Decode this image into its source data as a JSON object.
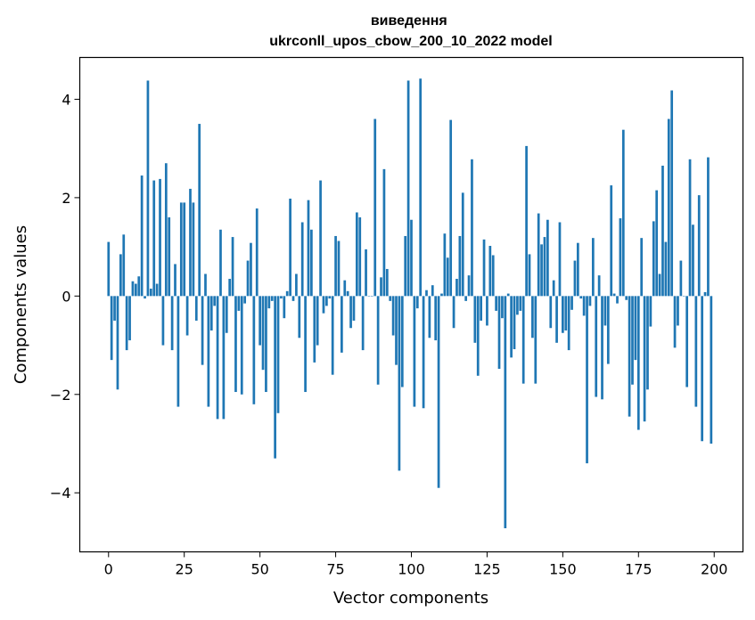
{
  "chart_data": {
    "type": "bar",
    "title": "виведення\nukrconll_upos_cbow_200_10_2022 model",
    "xlabel": "Vector components",
    "ylabel": "Components values",
    "xlim": [
      -9.5,
      209.5
    ],
    "ylim": [
      -5.2,
      4.85
    ],
    "xticks": [
      0,
      25,
      50,
      75,
      100,
      125,
      150,
      175,
      200
    ],
    "yticks": [
      -4,
      -2,
      0,
      2,
      4
    ],
    "grid": false,
    "bar_color": "#1f77b4",
    "values": [
      1.1,
      -1.3,
      -0.5,
      -1.9,
      0.85,
      1.25,
      -1.1,
      -0.9,
      0.3,
      0.25,
      0.4,
      2.45,
      -0.05,
      4.38,
      0.15,
      2.35,
      0.25,
      2.38,
      -1.0,
      2.7,
      1.6,
      -1.1,
      0.65,
      -2.25,
      1.9,
      1.9,
      -0.8,
      2.18,
      1.9,
      -0.5,
      3.5,
      -1.4,
      0.45,
      -2.25,
      -0.7,
      -0.2,
      -2.5,
      1.35,
      -2.5,
      -0.75,
      0.35,
      1.2,
      -1.95,
      -0.3,
      -2.0,
      -0.15,
      0.72,
      1.08,
      -2.2,
      1.78,
      -1.0,
      -1.5,
      -1.95,
      -0.25,
      -0.1,
      -3.3,
      -2.38,
      -0.05,
      -0.45,
      0.1,
      1.98,
      -0.1,
      0.45,
      -0.85,
      1.5,
      -1.95,
      1.95,
      1.35,
      -1.35,
      -1.0,
      2.35,
      -0.35,
      -0.2,
      -0.05,
      -1.6,
      1.22,
      1.12,
      -1.15,
      0.32,
      0.1,
      -0.65,
      -0.5,
      1.7,
      1.6,
      -1.1,
      0.95,
      0.0,
      0.0,
      3.6,
      -1.8,
      0.38,
      2.58,
      0.55,
      -0.1,
      -0.8,
      -1.4,
      -3.55,
      -1.85,
      1.22,
      4.38,
      1.55,
      -2.25,
      -0.25,
      4.42,
      -2.28,
      0.12,
      -0.85,
      0.22,
      -0.9,
      -3.9,
      0.05,
      1.27,
      0.78,
      3.58,
      -0.65,
      0.35,
      1.22,
      2.1,
      -0.1,
      0.42,
      2.78,
      -0.95,
      -1.62,
      -0.5,
      1.15,
      -0.6,
      1.02,
      0.83,
      -0.3,
      -1.48,
      -0.45,
      -4.72,
      0.05,
      -1.25,
      -1.08,
      -0.38,
      -0.3,
      -1.78,
      3.05,
      0.85,
      -0.85,
      -1.78,
      1.68,
      1.05,
      1.2,
      1.55,
      -0.65,
      0.32,
      -0.95,
      1.5,
      -0.75,
      -0.7,
      -1.1,
      -0.28,
      0.72,
      1.08,
      -0.05,
      -0.4,
      -3.4,
      -0.2,
      1.18,
      -2.05,
      0.42,
      -2.1,
      -0.6,
      -1.38,
      2.25,
      0.05,
      -0.15,
      1.58,
      3.38,
      -0.08,
      -2.45,
      -1.8,
      -1.3,
      -2.72,
      1.18,
      -2.55,
      -1.9,
      -0.62,
      1.52,
      2.15,
      0.45,
      2.65,
      1.1,
      3.6,
      4.18,
      -1.05,
      -0.6,
      0.72,
      0.0,
      -1.85,
      2.78,
      1.45,
      -2.25,
      2.05,
      -2.95,
      0.08,
      2.82,
      -3.0
    ]
  }
}
